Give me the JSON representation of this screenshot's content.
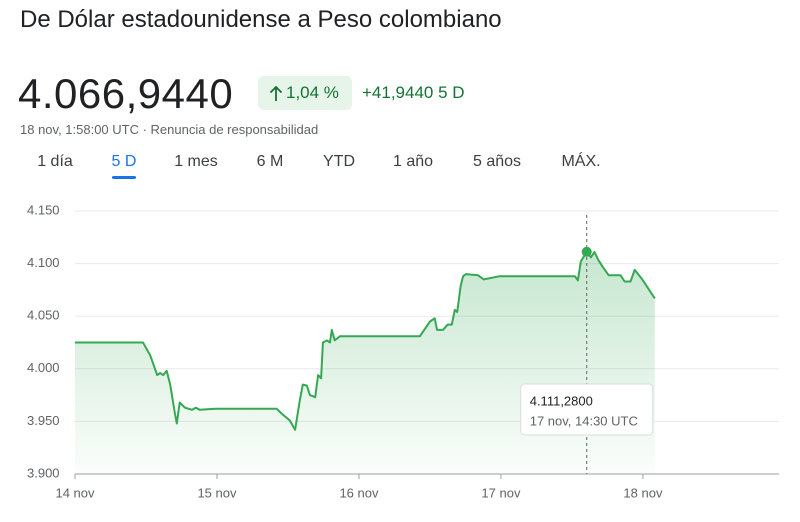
{
  "header": {
    "title": "De Dólar estadounidense a Peso colombiano",
    "price": "4.066,9440",
    "change_percent": "1,04 %",
    "change": "+41,9440 5 D",
    "date_line": "18 nov, 1:58:00 UTC · Renuncia de responsabilidad"
  },
  "tabs": [
    "1 día",
    "5 D",
    "1 mes",
    "6 M",
    "YTD",
    "1 año",
    "5 años",
    "MÁX."
  ],
  "selected_tab": 1,
  "chart_data": {
    "type": "line",
    "x": [
      0,
      11.5,
      12.7,
      13.9,
      14.4,
      14.9,
      15.5,
      16.1,
      16.9,
      17.2,
      17.7,
      18.6,
      19.8,
      20.4,
      21.1,
      23.7,
      34.1,
      35.0,
      36.3,
      37.2,
      38.0,
      38.5,
      39.2,
      39.7,
      40.6,
      41.1,
      41.6,
      41.9,
      42.6,
      43.1,
      43.4,
      43.9,
      44.8,
      58.3,
      60.0,
      60.8,
      61.2,
      62.2,
      63.0,
      63.7,
      64.2,
      64.6,
      65.2,
      65.6,
      66.1,
      68.1,
      69.1,
      71.8,
      84.5,
      85.0,
      85.5,
      86.5,
      87.2,
      87.8,
      88.5,
      89.2,
      90.2,
      92.2,
      92.9,
      93.9,
      94.6,
      95.9,
      98.0
    ],
    "series": [
      {
        "name": "USD/COP",
        "color": "#34a853",
        "values": [
          4025,
          4025,
          4013,
          3994,
          3996,
          3994,
          3998,
          3985,
          3957,
          3948,
          3968,
          3963,
          3961,
          3963,
          3961,
          3962,
          3962,
          3957,
          3951,
          3942,
          3970,
          3985,
          3984,
          3975,
          3973,
          3994,
          3991,
          4025,
          4027,
          4025,
          4037,
          4027,
          4031,
          4031,
          4045,
          4048,
          4037,
          4037,
          4042,
          4042,
          4056,
          4054,
          4079,
          4088,
          4090,
          4089,
          4085,
          4088,
          4088,
          4084,
          4102,
          4111.28,
          4106,
          4111,
          4103,
          4097,
          4089,
          4089,
          4083,
          4083,
          4094,
          4085,
          4066.944
        ]
      }
    ],
    "xlim": [
      0,
      119
    ],
    "xticks": [
      {
        "value": 0,
        "label": "14 nov"
      },
      {
        "value": 24,
        "label": "15 nov"
      },
      {
        "value": 48,
        "label": "16 nov"
      },
      {
        "value": 72,
        "label": "17 nov"
      },
      {
        "value": 96,
        "label": "18 nov"
      }
    ],
    "ylim": [
      3900,
      4150
    ],
    "yticks": [
      {
        "value": 3900,
        "label": "3.900"
      },
      {
        "value": 3950,
        "label": "3.950"
      },
      {
        "value": 4000,
        "label": "4.000"
      },
      {
        "value": 4050,
        "label": "4.050"
      },
      {
        "value": 4100,
        "label": "4.100"
      },
      {
        "value": 4150,
        "label": "4.150"
      }
    ],
    "grid": true,
    "tooltip": {
      "x": 86.5,
      "value": 4111.28,
      "value_label": "4.111,2800",
      "date_label": "17 nov, 14:30 UTC"
    }
  }
}
